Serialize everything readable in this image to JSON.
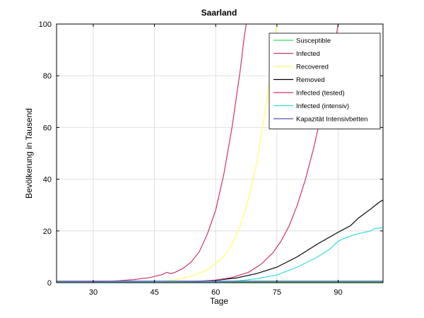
{
  "chart_data": {
    "type": "line",
    "title": "Saarland",
    "xlabel": "Tage",
    "ylabel": "Bevölkerung in Tausend",
    "xlim": [
      21,
      101
    ],
    "ylim": [
      0,
      100
    ],
    "xticks": [
      30,
      45,
      60,
      75,
      90
    ],
    "yticks": [
      0,
      20,
      40,
      60,
      80,
      100
    ],
    "grid": true,
    "legend_position": "top-right",
    "series": [
      {
        "name": "Susceptible",
        "color": "#33dd66",
        "points": [
          [
            21,
            0.3
          ],
          [
            101,
            0.3
          ]
        ]
      },
      {
        "name": "Infected",
        "color": "#cc3377",
        "points": [
          [
            21,
            0.2
          ],
          [
            30,
            0.3
          ],
          [
            35,
            0.6
          ],
          [
            40,
            1.2
          ],
          [
            44,
            2.0
          ],
          [
            47,
            3.2
          ],
          [
            48,
            4.0
          ],
          [
            49,
            3.5
          ],
          [
            50,
            4.0
          ],
          [
            52,
            5.5
          ],
          [
            54,
            8.0
          ],
          [
            56,
            12.0
          ],
          [
            58,
            19.0
          ],
          [
            60,
            28.0
          ],
          [
            62,
            42.0
          ],
          [
            64,
            60.0
          ],
          [
            66,
            82.0
          ],
          [
            67,
            95.0
          ],
          [
            67.5,
            100.0
          ]
        ]
      },
      {
        "name": "Recovered",
        "color": "#ffff66",
        "points": [
          [
            21,
            0.1
          ],
          [
            45,
            0.2
          ],
          [
            50,
            1.0
          ],
          [
            54,
            2.5
          ],
          [
            58,
            5.0
          ],
          [
            62,
            10.0
          ],
          [
            64,
            15.0
          ],
          [
            66,
            22.0
          ],
          [
            68,
            32.0
          ],
          [
            70,
            46.0
          ],
          [
            72,
            65.0
          ],
          [
            73.5,
            82.0
          ],
          [
            75,
            100.0
          ]
        ]
      },
      {
        "name": "Removed",
        "color": "#000000",
        "points": [
          [
            21,
            0.1
          ],
          [
            50,
            0.2
          ],
          [
            55,
            0.4
          ],
          [
            60,
            0.9
          ],
          [
            65,
            1.8
          ],
          [
            70,
            3.5
          ],
          [
            75,
            6.0
          ],
          [
            80,
            10.0
          ],
          [
            85,
            15.0
          ],
          [
            90,
            19.5
          ],
          [
            93,
            22.0
          ],
          [
            95,
            25.0
          ],
          [
            98,
            28.5
          ],
          [
            100,
            31.0
          ],
          [
            101,
            32.0
          ]
        ]
      },
      {
        "name": "Infected (tested)",
        "color": "#cc3377",
        "points": [
          [
            21,
            0.1
          ],
          [
            50,
            0.2
          ],
          [
            55,
            0.5
          ],
          [
            60,
            1.0
          ],
          [
            64,
            2.0
          ],
          [
            68,
            4.0
          ],
          [
            71,
            7.0
          ],
          [
            74,
            11.5
          ],
          [
            76,
            16.0
          ],
          [
            78,
            22.0
          ],
          [
            80,
            30.0
          ],
          [
            82,
            40.0
          ],
          [
            84,
            52.0
          ],
          [
            86,
            66.0
          ],
          [
            88,
            82.0
          ],
          [
            89,
            90.0
          ],
          [
            90,
            100.0
          ]
        ]
      },
      {
        "name": "Infected (intensiv)",
        "color": "#33dddd",
        "points": [
          [
            21,
            0.1
          ],
          [
            60,
            0.2
          ],
          [
            65,
            0.6
          ],
          [
            70,
            1.5
          ],
          [
            75,
            3.0
          ],
          [
            80,
            6.0
          ],
          [
            85,
            10.0
          ],
          [
            88,
            13.0
          ],
          [
            90,
            16.0
          ],
          [
            92,
            17.5
          ],
          [
            95,
            19.0
          ],
          [
            98,
            20.0
          ],
          [
            99,
            21.0
          ],
          [
            101,
            21.2
          ]
        ]
      },
      {
        "name": "Kapazität Intensivbetten",
        "color": "#5555bb",
        "points": [
          [
            21,
            0.6
          ],
          [
            101,
            0.6
          ]
        ]
      }
    ]
  }
}
